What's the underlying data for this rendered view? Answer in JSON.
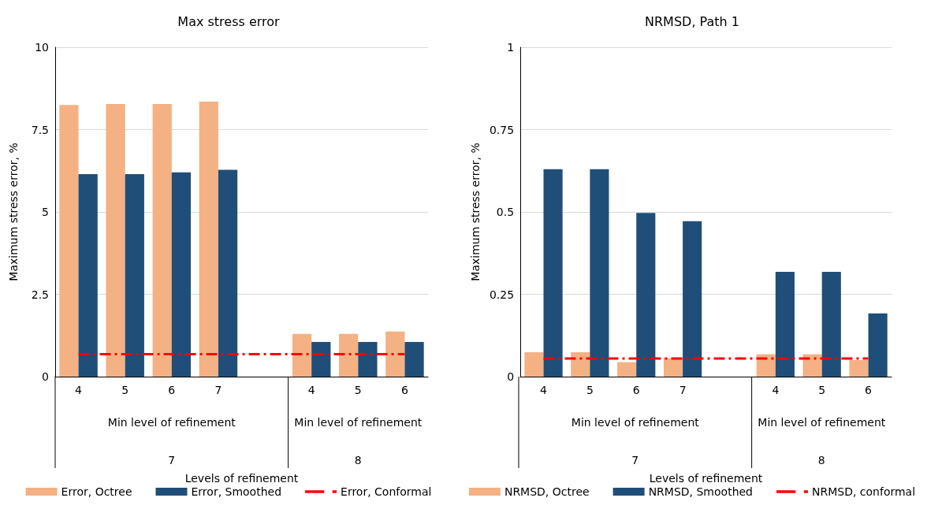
{
  "chart_data": [
    {
      "type": "bar",
      "title": "Max stress error",
      "xlabel": "Levels of refinement",
      "ylabel": "Maximum stress error, %",
      "categories": [
        "4",
        "5",
        "6",
        "7",
        null,
        "4",
        "5",
        "6"
      ],
      "series": [
        {
          "name": "Error, Octree",
          "color": "#f4b183",
          "values": [
            8.25,
            8.28,
            8.28,
            8.35,
            null,
            1.3,
            1.3,
            1.37
          ]
        },
        {
          "name": "Error, Smoothed",
          "color": "#1f4e79",
          "values": [
            6.15,
            6.15,
            6.2,
            6.28,
            null,
            1.05,
            1.05,
            1.05
          ]
        },
        {
          "name": "Error, Conformal",
          "color": "#ff0000",
          "type": "line",
          "line_style": "dashed",
          "marker": "none",
          "values": [
            0.68,
            0.68,
            0.68,
            0.68,
            0.68,
            0.68,
            0.68,
            0.68
          ]
        }
      ],
      "ylim": [
        0,
        10
      ],
      "yticks": [
        0,
        2.5,
        5,
        7.5,
        10
      ],
      "grid": "y",
      "legend": "bottom",
      "annotations": [
        "Min level of refinement",
        "Min level of refinement",
        "7",
        "8"
      ]
    },
    {
      "type": "bar",
      "title": "NRMSD, Path 1",
      "xlabel": "Levels of refinement",
      "ylabel": "Maximum stress error, %",
      "categories": [
        "4",
        "5",
        "6",
        "7",
        null,
        "4",
        "5",
        "6"
      ],
      "series": [
        {
          "name": "NRMSD, Octree",
          "color": "#f4b183",
          "values": [
            0.074,
            0.074,
            0.044,
            0.056,
            null,
            0.068,
            0.068,
            0.05
          ]
        },
        {
          "name": "NRMSD, Smoothed",
          "color": "#1f4e79",
          "values": [
            0.63,
            0.63,
            0.497,
            0.472,
            null,
            0.318,
            0.318,
            0.192
          ]
        },
        {
          "name": "NRMSD, conformal",
          "color": "#ff0000",
          "type": "line",
          "line_style": "dashed",
          "marker": "none",
          "values": [
            0.055,
            0.055,
            0.055,
            0.055,
            0.055,
            0.055,
            0.055,
            0.055
          ]
        }
      ],
      "ylim": [
        0,
        1
      ],
      "yticks": [
        0,
        0.25,
        0.5,
        0.75,
        1
      ],
      "grid": "y",
      "legend": "bottom",
      "annotations": [
        "Min level of refinement",
        "Min level of refinement",
        "7",
        "8"
      ]
    }
  ]
}
